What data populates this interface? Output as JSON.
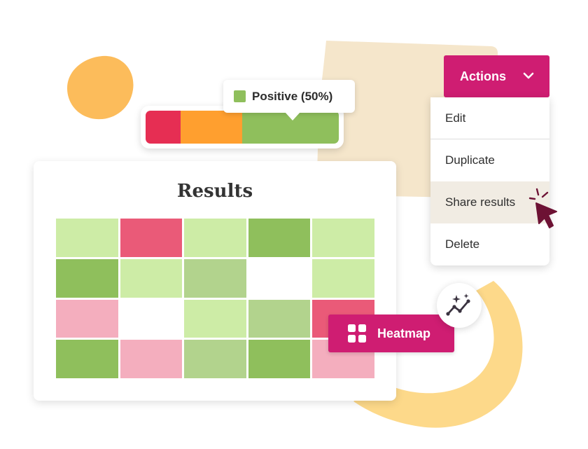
{
  "colors": {
    "accent": "#cf1d72",
    "negative": "#e62e53",
    "neutral": "#ff9f2f",
    "positive": "#8fbf5c",
    "heat_strong_negative": "#ea5a78",
    "heat_light_negative": "#f4aebe",
    "heat_strong_positive": "#8fbf5c",
    "heat_mid_positive": "#b2d38d",
    "heat_light_positive": "#cdeca6",
    "heat_empty": "#ffffff"
  },
  "sentiment": {
    "tooltip_label": "Positive (50%)",
    "segments": [
      {
        "name": "negative",
        "fraction": 0.18,
        "color": "#e62e53"
      },
      {
        "name": "neutral",
        "fraction": 0.32,
        "color": "#ff9f2f"
      },
      {
        "name": "positive",
        "fraction": 0.5,
        "color": "#8fbf5c"
      }
    ]
  },
  "results": {
    "title": "Results",
    "heatmap": [
      [
        "#cdeca6",
        "#ea5a78",
        "#cdeca6",
        "#8fbf5c",
        "#cdeca6"
      ],
      [
        "#8fbf5c",
        "#cdeca6",
        "#b2d38d",
        "#ffffff",
        "#cdeca6"
      ],
      [
        "#f4aebe",
        "#ffffff",
        "#cdeca6",
        "#b2d38d",
        "#ea5a78"
      ],
      [
        "#8fbf5c",
        "#f4aebe",
        "#b2d38d",
        "#8fbf5c",
        "#f4aebe"
      ]
    ]
  },
  "heatmap_button": {
    "label": "Heatmap",
    "icon": "grid-icon"
  },
  "sparkle_button": {
    "icon": "sparkle-trend-icon"
  },
  "actions": {
    "label": "Actions",
    "icon": "chevron-down-icon",
    "menu": [
      {
        "label": "Edit"
      },
      {
        "label": "Duplicate"
      },
      {
        "label": "Share results"
      },
      {
        "label": "Delete"
      }
    ]
  }
}
